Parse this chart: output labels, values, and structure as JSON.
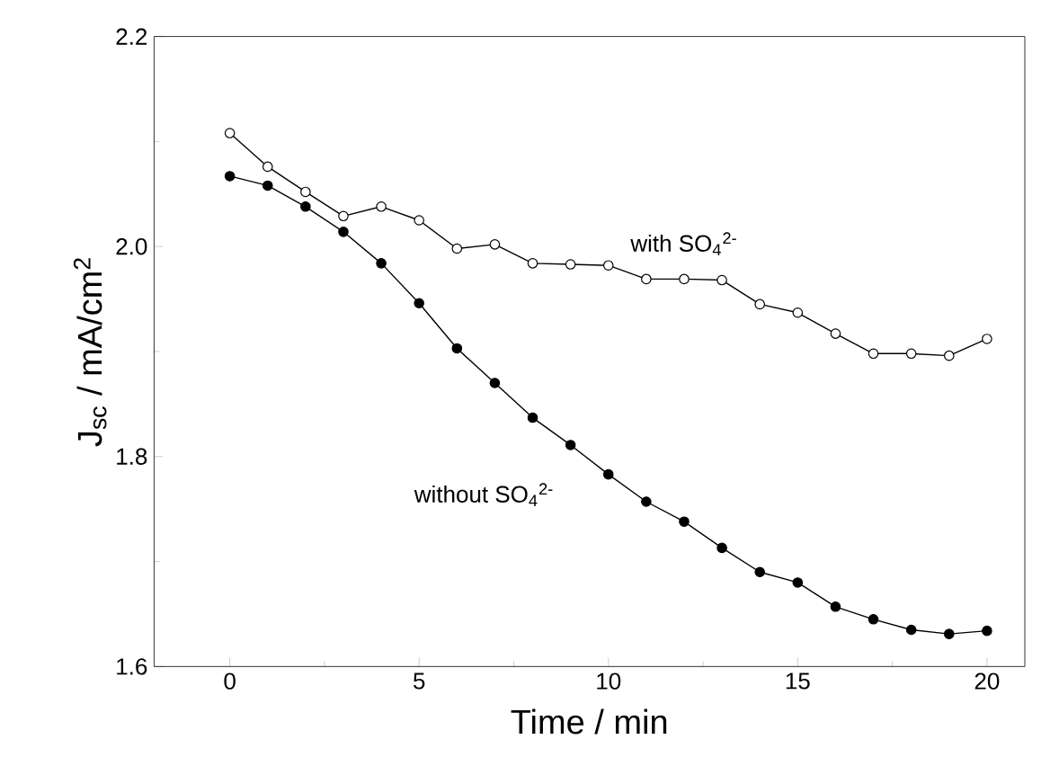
{
  "chart_data": {
    "type": "line",
    "xlabel": "Time / min",
    "ylabel": "J$_{sc}$ / mA/cm$^{2}$",
    "x": [
      0,
      1,
      2,
      3,
      4,
      5,
      6,
      7,
      8,
      9,
      10,
      11,
      12,
      13,
      14,
      15,
      16,
      17,
      18,
      19,
      20
    ],
    "series": [
      {
        "name": "with SO$_{4}$$^{2-}$",
        "color": "#000000",
        "values": [
          2.108,
          2.076,
          2.052,
          2.029,
          2.038,
          2.025,
          1.998,
          2.002,
          1.984,
          1.983,
          1.982,
          1.969,
          1.969,
          1.968,
          1.945,
          1.937,
          1.917,
          1.898,
          1.898,
          1.896,
          1.912
        ]
      },
      {
        "name": "without SO$_{4}$$^{2-}$",
        "color": "#000000",
        "values": [
          2.067,
          2.058,
          2.038,
          2.014,
          1.984,
          1.946,
          1.903,
          1.87,
          1.837,
          1.811,
          1.783,
          1.757,
          1.738,
          1.713,
          1.69,
          1.68,
          1.657,
          1.645,
          1.635,
          1.631,
          1.634
        ]
      }
    ],
    "xlim": [
      -2,
      21
    ],
    "ylim": [
      1.6,
      2.2
    ],
    "xticks": [
      0,
      {
        "value": 2.5,
        "label": null
      },
      5,
      {
        "value": 7.5,
        "label": null
      },
      10,
      {
        "value": 12.5,
        "label": null
      },
      15,
      {
        "value": 17.5,
        "label": null
      },
      20
    ],
    "yticks": [
      1.6,
      {
        "value": 1.7,
        "label": null
      },
      1.8,
      {
        "value": 1.9,
        "label": null
      },
      {
        "value": 2.0,
        "label": "2.0"
      },
      {
        "value": 2.1,
        "label": null
      },
      2.2
    ],
    "grid": false,
    "marker": "circle",
    "line_style": "solid"
  }
}
